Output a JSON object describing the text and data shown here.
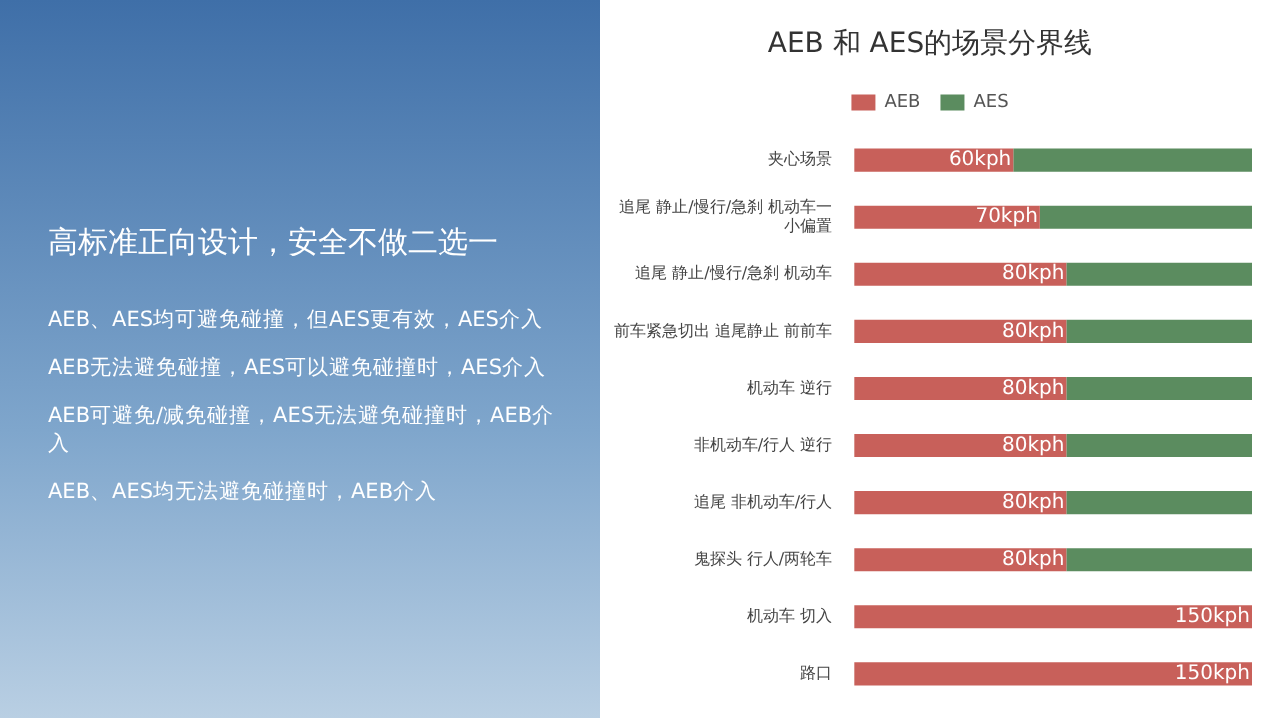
{
  "chart_data": {
    "type": "bar",
    "title": "AEB 和 AES的场景分界线",
    "orientation": "horizontal",
    "stacked": true,
    "legend": "top",
    "tick_labels": "y",
    "categories": [
      "夹心场景",
      "追尾 静止/慢行/急刹 机动车一小偏置",
      "追尾 静止/慢行/急刹 机动车",
      "前车紧急切出 追尾静止 前前车",
      "机动车 逆行",
      "非机动车/行人 逆行",
      "追尾 非机动车/行人",
      "鬼探头 行人/两轮车",
      "机动车 切入",
      "路口"
    ],
    "series": [
      {
        "name": "AEB",
        "color": "#c8605a",
        "values": [
          60,
          70,
          80,
          80,
          80,
          80,
          80,
          80,
          150,
          150
        ],
        "value_labels": [
          "60kph",
          "70kph",
          "80kph",
          "80kph",
          "80kph",
          "80kph",
          "80kph",
          "80kph",
          "150kph",
          "150kph"
        ]
      },
      {
        "name": "AES",
        "color": "#5b8c5f",
        "values": [
          90,
          80,
          70,
          70,
          70,
          70,
          70,
          70,
          0,
          0
        ]
      }
    ],
    "xlim": [
      0,
      150
    ],
    "annotations": [
      "高标准正向设计，安全不做二选一",
      "AEB、AES均可避免碰撞，但AES更有效，AES介入",
      "AEB无法避免碰撞，AES可以避免碰撞时，AES介入",
      "AEB可避免/减免碰撞，AES无法避免碰撞时，AEB介入",
      "AEB、AES均无法避免碰撞时，AEB介入"
    ]
  }
}
